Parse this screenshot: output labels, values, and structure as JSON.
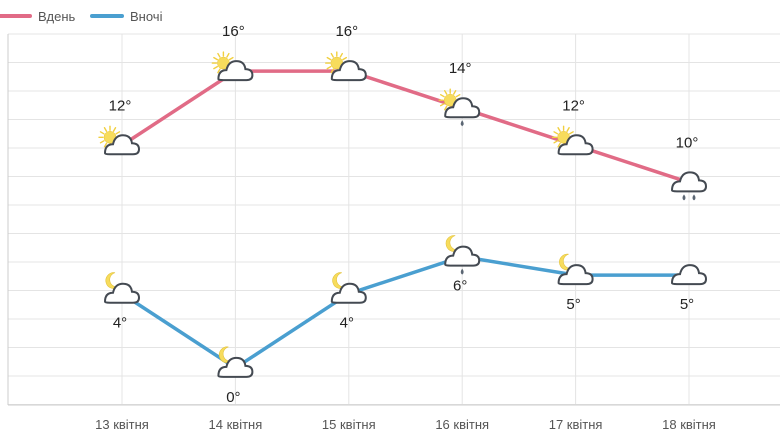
{
  "chart_data": {
    "type": "line",
    "categories": [
      "13 квітня",
      "14 квітня",
      "15 квітня",
      "16 квітня",
      "17 квітня",
      "18 квітня"
    ],
    "series": [
      {
        "name": "Вдень",
        "color": "#e16b86",
        "values": [
          12,
          16,
          16,
          14,
          12,
          10
        ],
        "labels": [
          "12°",
          "16°",
          "16°",
          "14°",
          "12°",
          "10°"
        ],
        "icons": [
          "partly-sunny-icon",
          "partly-sunny-icon",
          "partly-sunny-icon",
          "sunny-rain-icon",
          "partly-sunny-icon",
          "cloud-rain-icon"
        ]
      },
      {
        "name": "Вночі",
        "color": "#4a9fd0",
        "values": [
          4,
          0,
          4,
          6,
          5,
          5
        ],
        "labels": [
          "4°",
          "0°",
          "4°",
          "6°",
          "5°",
          "5°"
        ],
        "icons": [
          "moon-cloud-icon",
          "moon-cloud-icon",
          "moon-cloud-icon",
          "moon-rain-icon",
          "moon-cloud-icon",
          "cloud-icon"
        ]
      }
    ],
    "ylim": [
      -2,
      18
    ],
    "grid": true,
    "legend": "top-left"
  }
}
